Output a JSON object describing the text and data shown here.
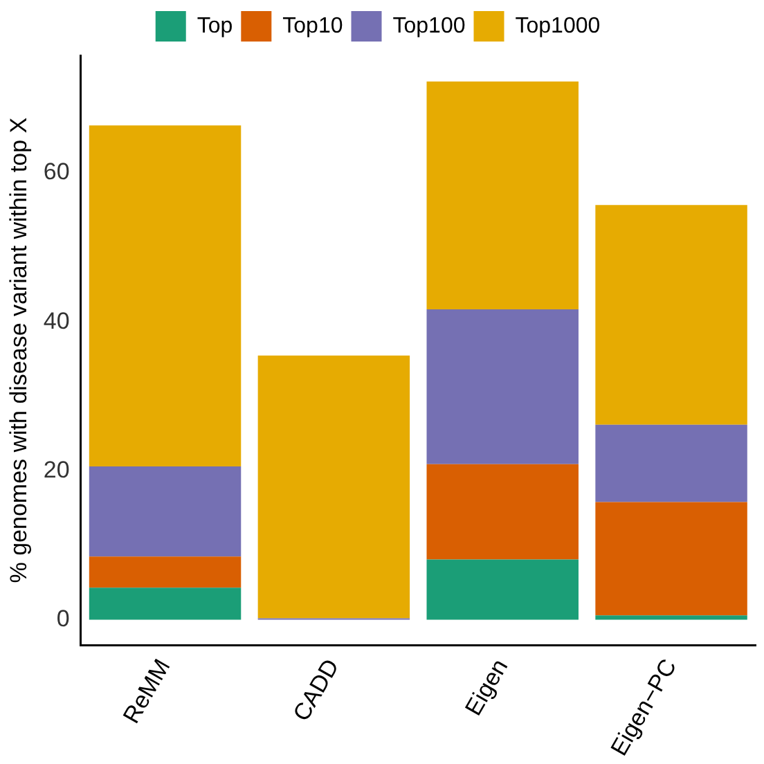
{
  "chart_data": {
    "type": "bar",
    "stacked": true,
    "ylabel": "% genomes with disease variant within top X",
    "categories": [
      "ReMM",
      "CADD",
      "Eigen",
      "Eigen−PC"
    ],
    "series": [
      {
        "name": "Top",
        "color": "#1b9e77",
        "values": [
          4.3,
          0,
          8.1,
          0.6
        ]
      },
      {
        "name": "Top10",
        "color": "#d95f02",
        "values": [
          4.2,
          0,
          12.8,
          15.2
        ]
      },
      {
        "name": "Top100",
        "color": "#7570b3",
        "values": [
          12.1,
          0.2,
          20.8,
          10.4
        ]
      },
      {
        "name": "Top1000",
        "color": "#e6ab02",
        "values": [
          45.8,
          35.3,
          30.6,
          29.5
        ]
      }
    ],
    "ylim": [
      -3.4,
      75.8
    ],
    "yticks": [
      0,
      20,
      40,
      60
    ],
    "grid": false,
    "legend": "top"
  }
}
